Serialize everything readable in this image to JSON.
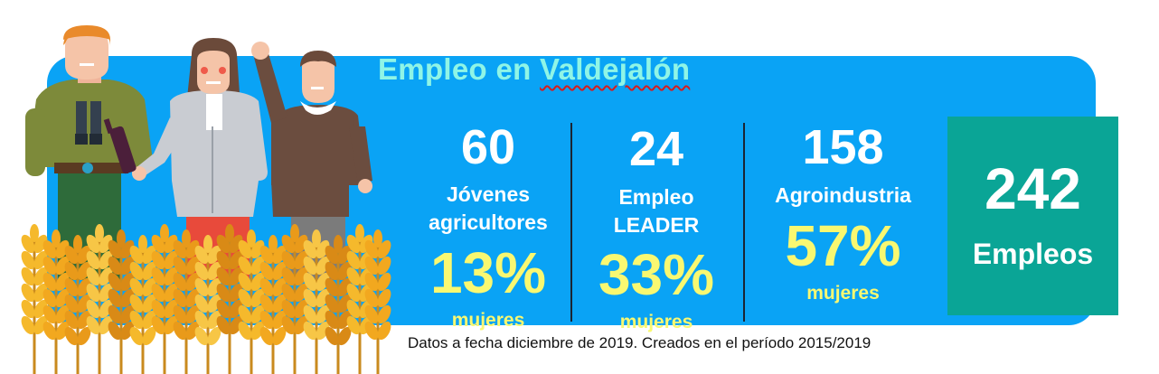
{
  "title_prefix": "Empleo en ",
  "title_place": "Valdejalón",
  "stats": [
    {
      "number": "60",
      "label_line1": "Jóvenes",
      "label_line2": "agricultores",
      "percent": "13%",
      "sub": "mujeres"
    },
    {
      "number": "24",
      "label_line1": "Empleo",
      "label_line2": "LEADER",
      "percent": "33%",
      "sub": "mujeres"
    },
    {
      "number": "158",
      "label_line1": "Agroindustria",
      "percent": "57%",
      "sub": "mujeres"
    }
  ],
  "total": {
    "number": "242",
    "label": "Empleos"
  },
  "footnote": "Datos a fecha diciembre de 2019. Creados en el período 2015/2019",
  "colors": {
    "panel": "#0aa3f5",
    "total_box": "#0aa596",
    "title": "#8ff5e6",
    "highlight": "#f9f871",
    "wheat": "#f5b92c"
  },
  "illustration": {
    "icons": [
      "farmer-icon",
      "woman-icon",
      "waving-man-icon",
      "wheat-field-icon"
    ]
  }
}
